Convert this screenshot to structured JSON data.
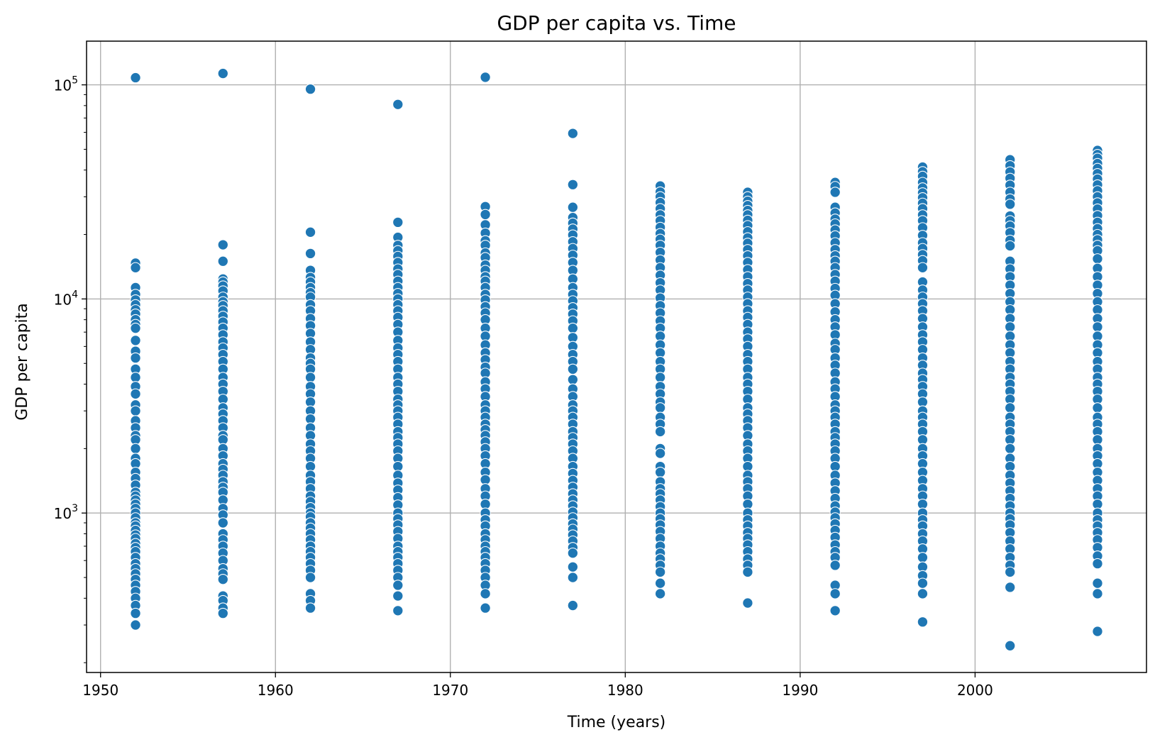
{
  "chart_data": {
    "type": "scatter",
    "title": "GDP per capita vs. Time",
    "xlabel": "Time (years)",
    "ylabel": "GDP per capita",
    "xlim": [
      1949.2,
      2009.8
    ],
    "ylim": [
      180,
      160000
    ],
    "yscale": "log",
    "grid": true,
    "xticks": [
      1950,
      1960,
      1970,
      1980,
      1990,
      2000
    ],
    "xtick_labels": [
      "1950",
      "1960",
      "1970",
      "1980",
      "1990",
      "2000"
    ],
    "yticks": [
      1000,
      10000,
      100000
    ],
    "ytick_labels": [
      {
        "base": "10",
        "exp": "3"
      },
      {
        "base": "10",
        "exp": "4"
      },
      {
        "base": "10",
        "exp": "5"
      }
    ],
    "marker_color": "#1f77b4",
    "series": [
      {
        "x": 1952,
        "y": [
          108000,
          14700,
          14000,
          11300,
          10500,
          9900,
          9400,
          8900,
          8500,
          8000,
          7600,
          7300,
          6400,
          5700,
          5300,
          4700,
          4300,
          3900,
          3600,
          3200,
          3000,
          2700,
          2500,
          2300,
          2200,
          2000,
          1800,
          1700,
          1550,
          1450,
          1350,
          1250,
          1200,
          1150,
          1100,
          1050,
          1000,
          950,
          900,
          870,
          830,
          790,
          760,
          720,
          690,
          660,
          620,
          580,
          550,
          520,
          490,
          460,
          430,
          400,
          370,
          340,
          300
        ]
      },
      {
        "x": 1957,
        "y": [
          113000,
          17900,
          15000,
          12400,
          12000,
          11500,
          10900,
          10200,
          9700,
          9300,
          8800,
          8300,
          7800,
          7300,
          6800,
          6300,
          5900,
          5500,
          5100,
          4700,
          4300,
          4000,
          3700,
          3400,
          3100,
          2900,
          2700,
          2500,
          2300,
          2200,
          2000,
          1850,
          1700,
          1600,
          1500,
          1400,
          1320,
          1250,
          1150,
          1050,
          980,
          900,
          800,
          750,
          700,
          650,
          600,
          550,
          520,
          490,
          410,
          390,
          360,
          340
        ]
      },
      {
        "x": 1962,
        "y": [
          95500,
          20500,
          16300,
          13600,
          12600,
          12000,
          11300,
          10700,
          10200,
          9400,
          8800,
          8100,
          7500,
          6900,
          6300,
          5800,
          5300,
          5000,
          4700,
          4300,
          3900,
          3600,
          3300,
          3000,
          2750,
          2500,
          2300,
          2100,
          1950,
          1800,
          1650,
          1500,
          1400,
          1300,
          1200,
          1130,
          1060,
          1000,
          960,
          900,
          850,
          800,
          750,
          700,
          660,
          620,
          580,
          540,
          500,
          420,
          390,
          360
        ]
      },
      {
        "x": 1967,
        "y": [
          81000,
          22800,
          19400,
          17800,
          16800,
          15800,
          14800,
          13800,
          13000,
          12100,
          11300,
          10600,
          10000,
          9400,
          8800,
          8200,
          7600,
          7000,
          6400,
          5900,
          5500,
          5100,
          4700,
          4300,
          4000,
          3700,
          3400,
          3200,
          3000,
          2800,
          2600,
          2400,
          2250,
          2100,
          1950,
          1800,
          1650,
          1500,
          1380,
          1280,
          1180,
          1090,
          1000,
          940,
          880,
          820,
          760,
          700,
          660,
          620,
          580,
          540,
          500,
          460,
          410,
          350
        ]
      },
      {
        "x": 1972,
        "y": [
          108500,
          27000,
          24800,
          22200,
          20300,
          18700,
          17800,
          16400,
          15600,
          14400,
          13600,
          12700,
          12100,
          11300,
          10500,
          9900,
          9200,
          8600,
          8000,
          7300,
          6700,
          6100,
          5600,
          5200,
          4800,
          4500,
          4100,
          3800,
          3500,
          3200,
          3000,
          2800,
          2600,
          2450,
          2300,
          2150,
          2000,
          1850,
          1700,
          1550,
          1430,
          1300,
          1200,
          1100,
          1000,
          930,
          870,
          800,
          750,
          700,
          660,
          620,
          580,
          540,
          500,
          460,
          420,
          360
        ]
      },
      {
        "x": 1977,
        "y": [
          59300,
          34200,
          26800,
          24000,
          22600,
          21200,
          19900,
          18500,
          17200,
          16000,
          14800,
          13600,
          12400,
          11300,
          10500,
          9800,
          9100,
          8500,
          7900,
          7300,
          6600,
          6000,
          5500,
          5100,
          4700,
          4200,
          3800,
          3500,
          3200,
          3000,
          2800,
          2600,
          2400,
          2250,
          2100,
          1950,
          1800,
          1650,
          1530,
          1420,
          1320,
          1230,
          1150,
          1080,
          1010,
          950,
          890,
          840,
          790,
          740,
          690,
          650,
          560,
          500,
          370
        ]
      },
      {
        "x": 1982,
        "y": [
          33700,
          31600,
          30000,
          28200,
          26400,
          24700,
          23200,
          21600,
          20200,
          19000,
          17800,
          16500,
          15200,
          14000,
          12900,
          11900,
          11000,
          10100,
          9300,
          8600,
          7900,
          7300,
          6700,
          6100,
          5600,
          5100,
          4700,
          4300,
          3900,
          3600,
          3300,
          3100,
          2800,
          2600,
          2400,
          2000,
          1900,
          1650,
          1550,
          1400,
          1300,
          1230,
          1150,
          1070,
          1000,
          940,
          880,
          820,
          760,
          700,
          650,
          610,
          570,
          530,
          470,
          420
        ]
      },
      {
        "x": 1987,
        "y": [
          31500,
          30000,
          28600,
          27300,
          25900,
          24700,
          23300,
          22000,
          20600,
          19300,
          18200,
          17000,
          15900,
          14800,
          13700,
          12700,
          11800,
          11000,
          10200,
          9500,
          8800,
          8200,
          7600,
          7000,
          6500,
          6000,
          5500,
          5100,
          4700,
          4300,
          4000,
          3700,
          3400,
          3100,
          2900,
          2700,
          2500,
          2300,
          2100,
          1950,
          1800,
          1650,
          1500,
          1400,
          1300,
          1200,
          1100,
          1000,
          930,
          870,
          810,
          760,
          710,
          660,
          610,
          570,
          530,
          380
        ]
      },
      {
        "x": 1992,
        "y": [
          35000,
          33500,
          31500,
          26800,
          25200,
          23600,
          22400,
          21000,
          19700,
          18300,
          17000,
          15900,
          15000,
          14000,
          13000,
          12100,
          11200,
          10400,
          9500,
          8700,
          8000,
          7400,
          6800,
          6200,
          5800,
          5300,
          4900,
          4500,
          4100,
          3800,
          3500,
          3200,
          3000,
          2800,
          2600,
          2400,
          2250,
          2100,
          1950,
          1800,
          1650,
          1500,
          1380,
          1270,
          1170,
          1080,
          1010,
          950,
          890,
          830,
          770,
          710,
          660,
          620,
          570,
          460,
          420,
          350
        ]
      },
      {
        "x": 1997,
        "y": [
          41300,
          39300,
          37400,
          35000,
          33000,
          31300,
          29700,
          28000,
          26400,
          24700,
          23200,
          21500,
          19800,
          18300,
          17200,
          16100,
          15100,
          14000,
          12000,
          11000,
          10200,
          9500,
          8800,
          8100,
          7400,
          6800,
          6300,
          5800,
          5300,
          4900,
          4500,
          4200,
          3900,
          3600,
          3300,
          3000,
          2800,
          2600,
          2400,
          2200,
          2000,
          1850,
          1700,
          1550,
          1420,
          1300,
          1200,
          1100,
          1000,
          930,
          870,
          800,
          740,
          680,
          620,
          560,
          510,
          470,
          420,
          310
        ]
      },
      {
        "x": 2002,
        "y": [
          44700,
          41900,
          39200,
          36600,
          34000,
          31500,
          29300,
          27700,
          24400,
          23200,
          21900,
          20400,
          18800,
          17700,
          15000,
          13800,
          12700,
          11600,
          10600,
          9700,
          8900,
          8100,
          7400,
          6700,
          6100,
          5600,
          5100,
          4700,
          4300,
          4000,
          3700,
          3400,
          3100,
          2800,
          2600,
          2400,
          2200,
          2000,
          1800,
          1650,
          1500,
          1380,
          1270,
          1170,
          1080,
          1000,
          940,
          880,
          810,
          740,
          680,
          620,
          570,
          530,
          450,
          240
        ]
      },
      {
        "x": 2007,
        "y": [
          49400,
          47300,
          45400,
          42900,
          40700,
          38500,
          36300,
          34100,
          32000,
          30000,
          28100,
          26300,
          24500,
          22800,
          21300,
          20000,
          18900,
          17800,
          16800,
          15400,
          13900,
          12700,
          11600,
          10600,
          9700,
          8900,
          8100,
          7400,
          6700,
          6100,
          5600,
          5100,
          4700,
          4300,
          4000,
          3700,
          3400,
          3100,
          2800,
          2600,
          2400,
          2200,
          2000,
          1850,
          1700,
          1550,
          1420,
          1300,
          1200,
          1100,
          1000,
          930,
          870,
          810,
          750,
          690,
          630,
          580,
          470,
          420,
          280
        ]
      }
    ]
  }
}
